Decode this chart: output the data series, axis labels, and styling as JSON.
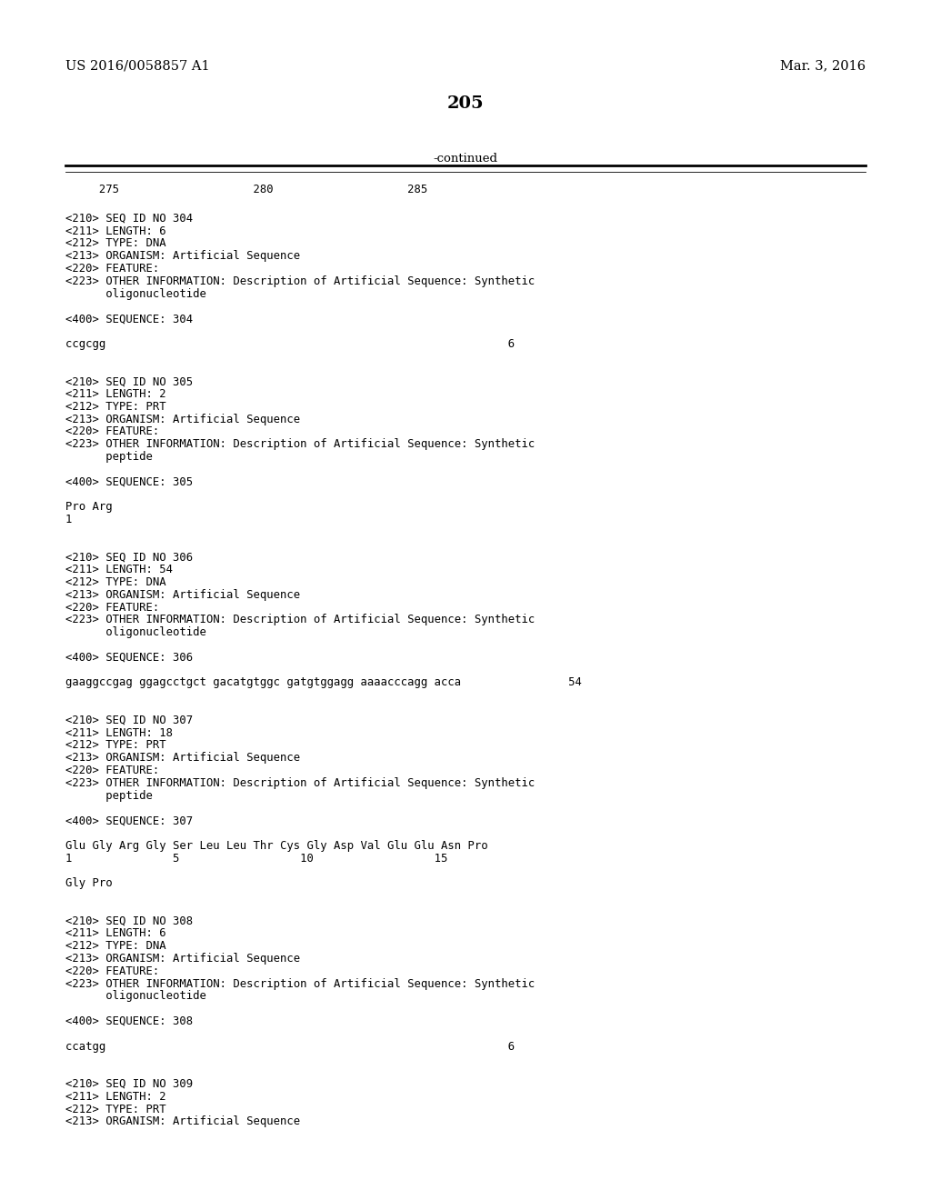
{
  "patent_left": "US 2016/0058857 A1",
  "patent_right": "Mar. 3, 2016",
  "page_number": "205",
  "continued_label": "-continued",
  "ruler_numbers": "     275                    280                    285",
  "bg_color": "#ffffff",
  "text_color": "#000000",
  "body_lines": [
    "",
    "<210> SEQ ID NO 304",
    "<211> LENGTH: 6",
    "<212> TYPE: DNA",
    "<213> ORGANISM: Artificial Sequence",
    "<220> FEATURE:",
    "<223> OTHER INFORMATION: Description of Artificial Sequence: Synthetic",
    "      oligonucleotide",
    "",
    "<400> SEQUENCE: 304",
    "",
    "ccgcgg                                                            6",
    "",
    "",
    "<210> SEQ ID NO 305",
    "<211> LENGTH: 2",
    "<212> TYPE: PRT",
    "<213> ORGANISM: Artificial Sequence",
    "<220> FEATURE:",
    "<223> OTHER INFORMATION: Description of Artificial Sequence: Synthetic",
    "      peptide",
    "",
    "<400> SEQUENCE: 305",
    "",
    "Pro Arg",
    "1",
    "",
    "",
    "<210> SEQ ID NO 306",
    "<211> LENGTH: 54",
    "<212> TYPE: DNA",
    "<213> ORGANISM: Artificial Sequence",
    "<220> FEATURE:",
    "<223> OTHER INFORMATION: Description of Artificial Sequence: Synthetic",
    "      oligonucleotide",
    "",
    "<400> SEQUENCE: 306",
    "",
    "gaaggccgag ggagcctgct gacatgtggc gatgtggagg aaaacccagg acca                54",
    "",
    "",
    "<210> SEQ ID NO 307",
    "<211> LENGTH: 18",
    "<212> TYPE: PRT",
    "<213> ORGANISM: Artificial Sequence",
    "<220> FEATURE:",
    "<223> OTHER INFORMATION: Description of Artificial Sequence: Synthetic",
    "      peptide",
    "",
    "<400> SEQUENCE: 307",
    "",
    "Glu Gly Arg Gly Ser Leu Leu Thr Cys Gly Asp Val Glu Glu Asn Pro",
    "1               5                  10                  15",
    "",
    "Gly Pro",
    "",
    "",
    "<210> SEQ ID NO 308",
    "<211> LENGTH: 6",
    "<212> TYPE: DNA",
    "<213> ORGANISM: Artificial Sequence",
    "<220> FEATURE:",
    "<223> OTHER INFORMATION: Description of Artificial Sequence: Synthetic",
    "      oligonucleotide",
    "",
    "<400> SEQUENCE: 308",
    "",
    "ccatgg                                                            6",
    "",
    "",
    "<210> SEQ ID NO 309",
    "<211> LENGTH: 2",
    "<212> TYPE: PRT",
    "<213> ORGANISM: Artificial Sequence"
  ]
}
